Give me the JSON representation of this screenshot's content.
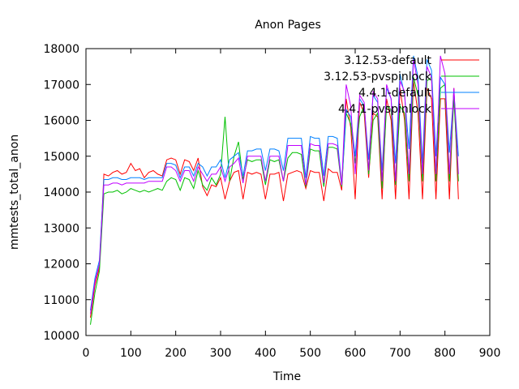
{
  "chart_data": {
    "type": "line",
    "title": "Anon Pages",
    "xlabel": "Time",
    "ylabel": "mmtests_total_anon",
    "xlim": [
      0,
      900
    ],
    "ylim": [
      10000,
      18000
    ],
    "xticks": [
      0,
      100,
      200,
      300,
      400,
      500,
      600,
      700,
      800,
      900
    ],
    "yticks": [
      10000,
      11000,
      12000,
      13000,
      14000,
      15000,
      16000,
      17000,
      18000
    ],
    "grid": false,
    "legend_position": "top-right",
    "series": [
      {
        "name": "3.12.53-default",
        "color": "#ff0000",
        "x": [
          10,
          20,
          30,
          40,
          50,
          60,
          70,
          80,
          90,
          100,
          110,
          120,
          130,
          140,
          150,
          160,
          170,
          180,
          190,
          200,
          210,
          220,
          230,
          240,
          250,
          260,
          270,
          280,
          290,
          300,
          310,
          320,
          330,
          340,
          350,
          360,
          370,
          380,
          390,
          400,
          410,
          420,
          430,
          440,
          450,
          460,
          470,
          480,
          490,
          500,
          510,
          520,
          530,
          540,
          550,
          560,
          570,
          580,
          590,
          600,
          610,
          620,
          630,
          640,
          650,
          660,
          670,
          680,
          690,
          700,
          710,
          720,
          730,
          740,
          750,
          760,
          770,
          780,
          790,
          800,
          810,
          820,
          830
        ],
        "values": [
          10500,
          11400,
          11900,
          14500,
          14450,
          14550,
          14600,
          14500,
          14550,
          14800,
          14600,
          14650,
          14400,
          14550,
          14600,
          14500,
          14450,
          14900,
          14950,
          14900,
          14500,
          14900,
          14850,
          14600,
          14950,
          14150,
          13900,
          14200,
          14150,
          14400,
          13800,
          14300,
          14550,
          14600,
          13800,
          14550,
          14500,
          14550,
          14500,
          13800,
          14500,
          14500,
          14550,
          13750,
          14500,
          14550,
          14600,
          14550,
          14100,
          14600,
          14550,
          14550,
          13750,
          14650,
          14550,
          14550,
          14050,
          16600,
          15800,
          13800,
          16500,
          16200,
          14400,
          16200,
          16100,
          13800,
          16600,
          16000,
          13800,
          16900,
          16000,
          13800,
          17100,
          16200,
          13800,
          16900,
          16600,
          13800,
          16600,
          16600,
          13800,
          16900,
          13800
        ]
      },
      {
        "name": "3.12.53-pvspinlock",
        "color": "#00c000",
        "x": [
          10,
          20,
          30,
          40,
          50,
          60,
          70,
          80,
          90,
          100,
          110,
          120,
          130,
          140,
          150,
          160,
          170,
          180,
          190,
          200,
          210,
          220,
          230,
          240,
          250,
          260,
          270,
          280,
          290,
          300,
          310,
          320,
          330,
          340,
          350,
          360,
          370,
          380,
          390,
          400,
          410,
          420,
          430,
          440,
          450,
          460,
          470,
          480,
          490,
          500,
          510,
          520,
          530,
          540,
          550,
          560,
          570,
          580,
          590,
          600,
          610,
          620,
          630,
          640,
          650,
          660,
          670,
          680,
          690,
          700,
          710,
          720,
          730,
          740,
          750,
          760,
          770,
          780,
          790,
          800,
          810,
          820,
          830
        ],
        "values": [
          10300,
          11200,
          11800,
          13950,
          14000,
          14000,
          14050,
          13950,
          14000,
          14100,
          14050,
          14000,
          14050,
          14000,
          14050,
          14100,
          14050,
          14300,
          14400,
          14350,
          14050,
          14400,
          14350,
          14100,
          14600,
          14200,
          14050,
          14400,
          14200,
          14500,
          16100,
          14300,
          15000,
          15400,
          14350,
          14900,
          14850,
          14900,
          14900,
          14200,
          14900,
          14850,
          14900,
          14300,
          14950,
          15100,
          15100,
          15050,
          14150,
          15200,
          15150,
          15150,
          14150,
          15250,
          15250,
          15200,
          14150,
          16200,
          15900,
          14800,
          16100,
          16400,
          14500,
          16000,
          16200,
          14100,
          16400,
          16300,
          14200,
          16400,
          16200,
          14300,
          17200,
          16700,
          14300,
          17100,
          17200,
          14300,
          16900,
          17000,
          14300,
          16600,
          14300
        ]
      },
      {
        "name": "4.4.1-default",
        "color": "#0080ff",
        "x": [
          10,
          20,
          30,
          40,
          50,
          60,
          70,
          80,
          90,
          100,
          110,
          120,
          130,
          140,
          150,
          160,
          170,
          180,
          190,
          200,
          210,
          220,
          230,
          240,
          250,
          260,
          270,
          280,
          290,
          300,
          310,
          320,
          330,
          340,
          350,
          360,
          370,
          380,
          390,
          400,
          410,
          420,
          430,
          440,
          450,
          460,
          470,
          480,
          490,
          500,
          510,
          520,
          530,
          540,
          550,
          560,
          570,
          580,
          590,
          600,
          610,
          620,
          630,
          640,
          650,
          660,
          670,
          680,
          690,
          700,
          710,
          720,
          730,
          740,
          750,
          760,
          770,
          780,
          790,
          800,
          810,
          820,
          830
        ],
        "values": [
          10700,
          11600,
          12100,
          14350,
          14350,
          14400,
          14400,
          14350,
          14350,
          14400,
          14400,
          14400,
          14350,
          14400,
          14400,
          14400,
          14400,
          14800,
          14800,
          14750,
          14400,
          14700,
          14700,
          14450,
          14800,
          14700,
          14450,
          14700,
          14700,
          14900,
          14400,
          14900,
          15000,
          15100,
          14450,
          15150,
          15150,
          15200,
          15200,
          14600,
          15200,
          15200,
          15150,
          14600,
          15500,
          15500,
          15500,
          15500,
          14400,
          15550,
          15500,
          15500,
          14450,
          15550,
          15550,
          15500,
          14200,
          16300,
          16100,
          15000,
          16600,
          16400,
          14900,
          16700,
          16500,
          14600,
          16900,
          16600,
          14800,
          17300,
          16700,
          15200,
          17800,
          17200,
          14800,
          17700,
          17400,
          15000,
          17200,
          17000,
          15100,
          16800,
          15000
        ]
      },
      {
        "name": "4.4.1-pvspinlock",
        "color": "#c000ff",
        "x": [
          10,
          20,
          30,
          40,
          50,
          60,
          70,
          80,
          90,
          100,
          110,
          120,
          130,
          140,
          150,
          160,
          170,
          180,
          190,
          200,
          210,
          220,
          230,
          240,
          250,
          260,
          270,
          280,
          290,
          300,
          310,
          320,
          330,
          340,
          350,
          360,
          370,
          380,
          390,
          400,
          410,
          420,
          430,
          440,
          450,
          460,
          470,
          480,
          490,
          500,
          510,
          520,
          530,
          540,
          550,
          560,
          570,
          580,
          590,
          600,
          610,
          620,
          630,
          640,
          650,
          660,
          670,
          680,
          690,
          700,
          710,
          720,
          730,
          740,
          750,
          760,
          770,
          780,
          790,
          800,
          810,
          820,
          830
        ],
        "values": [
          10600,
          11500,
          12000,
          14200,
          14200,
          14250,
          14250,
          14200,
          14250,
          14250,
          14250,
          14250,
          14250,
          14300,
          14300,
          14300,
          14300,
          14700,
          14700,
          14600,
          14300,
          14600,
          14600,
          14300,
          14700,
          14500,
          14300,
          14500,
          14500,
          14700,
          14300,
          14700,
          14800,
          14950,
          14250,
          15000,
          15000,
          15000,
          15000,
          14300,
          15000,
          15000,
          15000,
          14300,
          15300,
          15300,
          15300,
          15300,
          14200,
          15350,
          15300,
          15300,
          14250,
          15350,
          15350,
          15300,
          14200,
          17000,
          16400,
          14500,
          16700,
          16500,
          14600,
          16800,
          16600,
          14300,
          17000,
          16600,
          14300,
          17100,
          16800,
          14500,
          17700,
          17000,
          14500,
          17500,
          17200,
          14500,
          17800,
          17300,
          14500,
          16900,
          14500
        ]
      }
    ]
  }
}
